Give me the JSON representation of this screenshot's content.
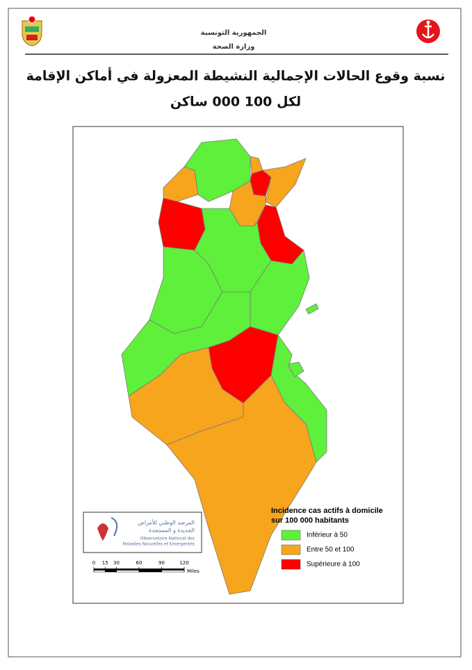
{
  "header": {
    "line1": "الجمهورية التونسية",
    "line2": "وزارة الصحة"
  },
  "title": {
    "line1": "نسبة وقوع الحالات الإجمالية النشيطة المعزولة في أماكن الإقامة",
    "line2": "لكل 100 000 ساكن"
  },
  "legend": {
    "title_line1": "Incidence cas actifs à domicile",
    "title_line2": "sur 100 000 habitants",
    "items": [
      {
        "label": "Inférieur à 50",
        "color": "#5ef03a"
      },
      {
        "label": "Entre 50 et 100",
        "color": "#f7a51c"
      },
      {
        "label": "Supérieure à 100",
        "color": "#ff0000"
      }
    ]
  },
  "logo": {
    "arabic_line1": "المرصد الوطني للأمراض",
    "arabic_line2": "الجديدة و المستجدة",
    "french_line1": "Observatoire National des",
    "french_line2": "Maladies Nouvelles et Emergentes"
  },
  "scale": {
    "ticks": [
      0,
      15,
      30,
      60,
      90,
      120
    ],
    "unit": "Miles"
  }
}
